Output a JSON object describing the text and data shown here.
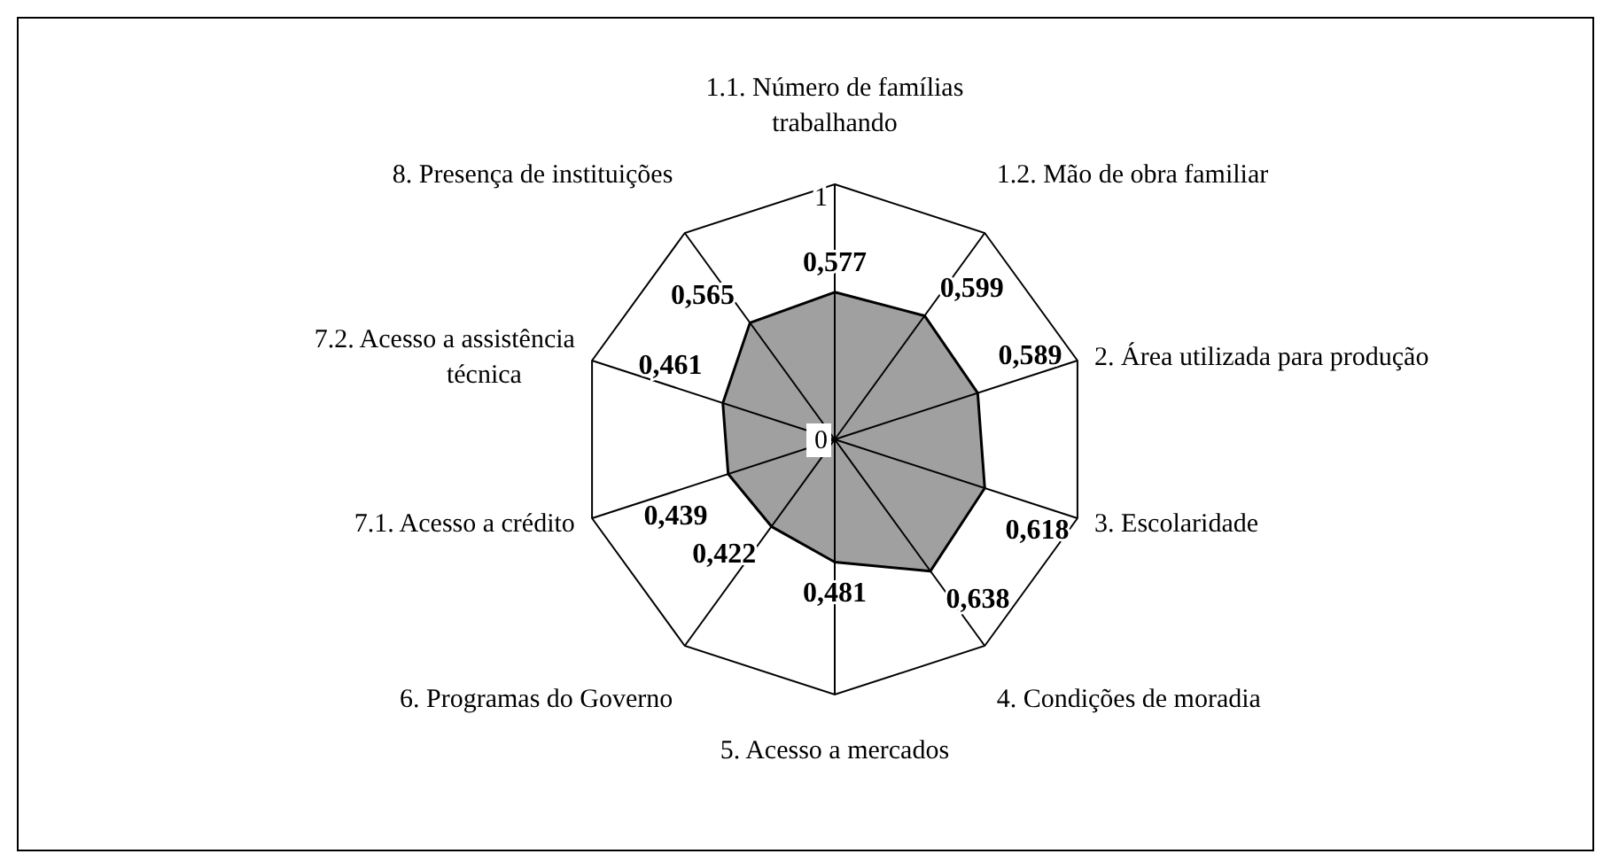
{
  "chart_data": {
    "type": "radar",
    "categories": [
      "1.1. Número de famílias trabalhando",
      "1.2. Mão de obra familiar",
      "2. Área utilizada para produção",
      "3. Escolaridade",
      "4. Condições de moradia",
      "5. Acesso a mercados",
      "6. Programas do Governo",
      "7.1. Acesso a crédito",
      "7.2. Acesso a assistência técnica",
      "8. Presença de instituições"
    ],
    "series": [
      {
        "color": "#a0a0a0",
        "values": [
          0.577,
          0.599,
          0.589,
          0.618,
          0.638,
          0.481,
          0.422,
          0.439,
          0.461,
          0.565
        ],
        "value_labels": [
          "0,577",
          "0,599",
          "0,589",
          "0,618",
          "0,638",
          "0,481",
          "0,422",
          "0,439",
          "0,461",
          "0,565"
        ]
      }
    ],
    "ylim": [
      0,
      1
    ],
    "yticks": [
      0,
      1
    ]
  }
}
